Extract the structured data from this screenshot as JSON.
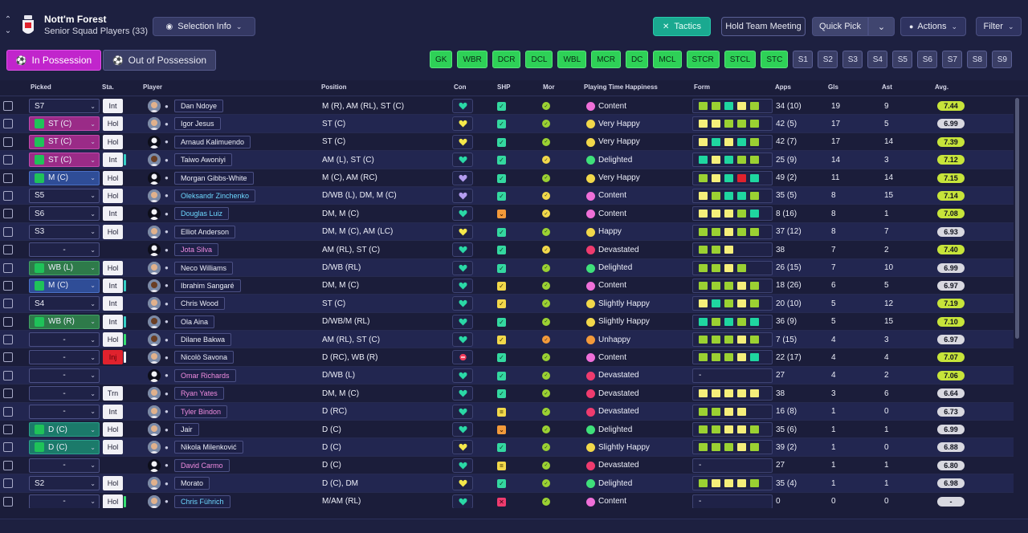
{
  "header": {
    "club_name": "Nott'm Forest",
    "squad_label": "Senior Squad Players (33)",
    "selection_info": "Selection Info",
    "tactics": "Tactics",
    "hold_meeting": "Hold Team Meeting",
    "quick_pick": "Quick Pick",
    "actions": "Actions",
    "filter": "Filter"
  },
  "tabs": {
    "in_possession": "In Possession",
    "out_possession": "Out of Possession"
  },
  "position_buttons": [
    {
      "label": "GK",
      "type": "g"
    },
    {
      "label": "WBR",
      "type": "g"
    },
    {
      "label": "DCR",
      "type": "g"
    },
    {
      "label": "DCL",
      "type": "g"
    },
    {
      "label": "WBL",
      "type": "g"
    },
    {
      "label": "MCR",
      "type": "g"
    },
    {
      "label": "DC",
      "type": "g"
    },
    {
      "label": "MCL",
      "type": "g"
    },
    {
      "label": "STCR",
      "type": "g"
    },
    {
      "label": "STCL",
      "type": "g"
    },
    {
      "label": "STC",
      "type": "g"
    },
    {
      "label": "S1",
      "type": "s"
    },
    {
      "label": "S2",
      "type": "s"
    },
    {
      "label": "S3",
      "type": "s"
    },
    {
      "label": "S4",
      "type": "s"
    },
    {
      "label": "S5",
      "type": "s"
    },
    {
      "label": "S6",
      "type": "s"
    },
    {
      "label": "S7",
      "type": "s"
    },
    {
      "label": "S8",
      "type": "s"
    },
    {
      "label": "S9",
      "type": "s"
    }
  ],
  "columns": {
    "picked": "Picked",
    "sta": "Sta.",
    "player": "Player",
    "position": "Position",
    "con": "Con",
    "shp": "SHP",
    "mor": "Mor",
    "happiness": "Playing Time Happiness",
    "form": "Form",
    "apps": "Apps",
    "gls": "Gls",
    "ast": "Ast",
    "avg": "Avg."
  },
  "colors": {
    "form_green": "#1fd6a0",
    "form_lightgreen": "#9bd132",
    "form_yellow": "#f5ef7a",
    "form_red": "#e0222d",
    "happy": "#f2d84a",
    "content": "#ef6fd8",
    "devastated": "#ef3b6e",
    "unhappy": "#f39a3a",
    "delighted": "#3fe07a"
  },
  "players": [
    {
      "picked": "S7",
      "pk": "sub",
      "sta": "Int",
      "bar": "",
      "avatar": "light",
      "name": "Dan Ndoye",
      "nc": "",
      "pos": "M (R), AM (RL), ST (C)",
      "con": "green",
      "shp": "g",
      "mor": "g",
      "hap": "Content",
      "hapc": "content",
      "form": [
        "lg",
        "lg",
        "gr",
        "y",
        "lg"
      ],
      "apps": "34 (10)",
      "gls": "19",
      "ast": "9",
      "avg": "7.44",
      "avgc": "#c7e43a"
    },
    {
      "picked": "ST (C)",
      "pk": "att",
      "sta": "Hol",
      "bar": "",
      "avatar": "light",
      "name": "Igor Jesus",
      "nc": "",
      "pos": "ST (C)",
      "con": "yellow",
      "shp": "g",
      "mor": "g",
      "hap": "Very Happy",
      "hapc": "happy",
      "form": [
        "y",
        "y",
        "lg",
        "lg",
        "lg"
      ],
      "apps": "42 (5)",
      "gls": "17",
      "ast": "5",
      "avg": "6.99",
      "avgc": "#d8d8e0"
    },
    {
      "picked": "ST (C)",
      "pk": "att",
      "sta": "Hol",
      "bar": "",
      "avatar": "none",
      "name": "Arnaud Kalimuendo",
      "nc": "",
      "pos": "ST (C)",
      "con": "yellow",
      "shp": "g",
      "mor": "g",
      "hap": "Very Happy",
      "hapc": "happy",
      "form": [
        "y",
        "gr",
        "y",
        "gr",
        "lg"
      ],
      "apps": "42 (7)",
      "gls": "17",
      "ast": "14",
      "avg": "7.39",
      "avgc": "#c7e43a"
    },
    {
      "picked": "ST (C)",
      "pk": "att",
      "sta": "Int",
      "bar": "c",
      "avatar": "dark",
      "name": "Taiwo Awoniyi",
      "nc": "",
      "pos": "AM (L), ST (C)",
      "con": "green",
      "shp": "g",
      "mor": "y",
      "hap": "Delighted",
      "hapc": "delighted",
      "form": [
        "gr",
        "y",
        "gr",
        "lg",
        "lg"
      ],
      "apps": "25 (9)",
      "gls": "14",
      "ast": "3",
      "avg": "7.12",
      "avgc": "#c7e43a"
    },
    {
      "picked": "M (C)",
      "pk": "mid",
      "sta": "Hol",
      "bar": "",
      "avatar": "none",
      "name": "Morgan Gibbs-White",
      "nc": "",
      "pos": "M (C), AM (RC)",
      "con": "purple",
      "shp": "g",
      "mor": "g",
      "hap": "Very Happy",
      "hapc": "happy",
      "form": [
        "lg",
        "y",
        "gr",
        "r",
        "gr"
      ],
      "apps": "49 (2)",
      "gls": "11",
      "ast": "14",
      "avg": "7.15",
      "avgc": "#c7e43a"
    },
    {
      "picked": "S5",
      "pk": "sub",
      "sta": "Hol",
      "bar": "",
      "avatar": "light",
      "name": "Oleksandr Zinchenko",
      "nc": "cyan",
      "pos": "D/WB (L), DM, M (C)",
      "con": "purple",
      "shp": "g",
      "mor": "y",
      "hap": "Content",
      "hapc": "content",
      "form": [
        "y",
        "lg",
        "gr",
        "gr",
        "lg"
      ],
      "apps": "35 (5)",
      "gls": "8",
      "ast": "15",
      "avg": "7.14",
      "avgc": "#c7e43a"
    },
    {
      "picked": "S6",
      "pk": "sub",
      "sta": "Int",
      "bar": "",
      "avatar": "none",
      "name": "Douglas Luiz",
      "nc": "cyan",
      "pos": "DM, M (C)",
      "con": "green",
      "shp": "o",
      "mor": "y",
      "hap": "Content",
      "hapc": "content",
      "form": [
        "y",
        "y",
        "y",
        "lg",
        "gr"
      ],
      "apps": "8 (16)",
      "gls": "8",
      "ast": "1",
      "avg": "7.08",
      "avgc": "#c7e43a"
    },
    {
      "picked": "S3",
      "pk": "sub",
      "sta": "Hol",
      "bar": "",
      "avatar": "light",
      "name": "Elliot Anderson",
      "nc": "",
      "pos": "DM, M (C), AM (LC)",
      "con": "yellow",
      "shp": "g",
      "mor": "g",
      "hap": "Happy",
      "hapc": "happy",
      "form": [
        "lg",
        "lg",
        "y",
        "lg",
        "lg"
      ],
      "apps": "37 (12)",
      "gls": "8",
      "ast": "7",
      "avg": "6.93",
      "avgc": "#d8d8e0"
    },
    {
      "picked": "-",
      "pk": "none",
      "sta": "",
      "bar": "",
      "avatar": "none",
      "name": "Jota Silva",
      "nc": "pink",
      "pos": "AM (RL), ST (C)",
      "con": "green",
      "shp": "g",
      "mor": "y",
      "hap": "Devastated",
      "hapc": "devastated",
      "form": [
        "lg",
        "lg",
        "y"
      ],
      "apps": "38",
      "gls": "7",
      "ast": "2",
      "avg": "7.40",
      "avgc": "#c7e43a"
    },
    {
      "picked": "WB (L)",
      "pk": "wb",
      "sta": "Hol",
      "bar": "",
      "avatar": "light",
      "name": "Neco Williams",
      "nc": "",
      "pos": "D/WB (RL)",
      "con": "green",
      "shp": "g",
      "mor": "g",
      "hap": "Delighted",
      "hapc": "delighted",
      "form": [
        "lg",
        "lg",
        "y",
        "lg"
      ],
      "apps": "26 (15)",
      "gls": "7",
      "ast": "10",
      "avg": "6.99",
      "avgc": "#d8d8e0"
    },
    {
      "picked": "M (C)",
      "pk": "mid",
      "sta": "Int",
      "bar": "c",
      "avatar": "dark",
      "name": "Ibrahim Sangaré",
      "nc": "",
      "pos": "DM, M (C)",
      "con": "green",
      "shp": "y",
      "mor": "g",
      "hap": "Content",
      "hapc": "content",
      "form": [
        "lg",
        "lg",
        "lg",
        "y",
        "lg"
      ],
      "apps": "18 (26)",
      "gls": "6",
      "ast": "5",
      "avg": "6.97",
      "avgc": "#d8d8e0"
    },
    {
      "picked": "S4",
      "pk": "sub",
      "sta": "Int",
      "bar": "",
      "avatar": "light",
      "name": "Chris Wood",
      "nc": "",
      "pos": "ST (C)",
      "con": "green",
      "shp": "y",
      "mor": "g",
      "hap": "Slightly Happy",
      "hapc": "happy",
      "form": [
        "y",
        "gr",
        "lg",
        "y",
        "lg"
      ],
      "apps": "20 (10)",
      "gls": "5",
      "ast": "12",
      "avg": "7.19",
      "avgc": "#c7e43a"
    },
    {
      "picked": "WB (R)",
      "pk": "wb",
      "sta": "Int",
      "bar": "c",
      "avatar": "dark",
      "name": "Ola Aina",
      "nc": "",
      "pos": "D/WB/M (RL)",
      "con": "green",
      "shp": "g",
      "mor": "g",
      "hap": "Slightly Happy",
      "hapc": "happy",
      "form": [
        "gr",
        "lg",
        "gr",
        "lg",
        "gr"
      ],
      "apps": "36 (9)",
      "gls": "5",
      "ast": "15",
      "avg": "7.10",
      "avgc": "#c7e43a"
    },
    {
      "picked": "-",
      "pk": "none",
      "sta": "Hol",
      "bar": "g",
      "avatar": "dark",
      "name": "Dilane Bakwa",
      "nc": "",
      "pos": "AM (RL), ST (C)",
      "con": "green",
      "shp": "y",
      "mor": "o",
      "hap": "Unhappy",
      "hapc": "unhappy",
      "form": [
        "lg",
        "lg",
        "lg",
        "y",
        "lg"
      ],
      "apps": "7 (15)",
      "gls": "4",
      "ast": "3",
      "avg": "6.97",
      "avgc": "#d8d8e0"
    },
    {
      "picked": "-",
      "pk": "none",
      "sta": "Inj",
      "bar": "w",
      "avatar": "light",
      "name": "Nicolò Savona",
      "nc": "",
      "pos": "D (RC), WB (R)",
      "con": "red",
      "shp": "g",
      "mor": "g",
      "hap": "Content",
      "hapc": "content",
      "form": [
        "lg",
        "lg",
        "lg",
        "y",
        "gr"
      ],
      "apps": "22 (17)",
      "gls": "4",
      "ast": "4",
      "avg": "7.07",
      "avgc": "#c7e43a"
    },
    {
      "picked": "-",
      "pk": "none",
      "sta": "",
      "bar": "",
      "avatar": "none",
      "name": "Omar Richards",
      "nc": "pink",
      "pos": "D/WB (L)",
      "con": "green",
      "shp": "g",
      "mor": "g",
      "hap": "Devastated",
      "hapc": "devastated",
      "form": [
        "-"
      ],
      "apps": "27",
      "gls": "4",
      "ast": "2",
      "avg": "7.06",
      "avgc": "#c7e43a"
    },
    {
      "picked": "-",
      "pk": "none",
      "sta": "Trn",
      "bar": "",
      "avatar": "light",
      "name": "Ryan Yates",
      "nc": "pink",
      "pos": "DM, M (C)",
      "con": "green",
      "shp": "g",
      "mor": "g",
      "hap": "Devastated",
      "hapc": "devastated",
      "form": [
        "y",
        "y",
        "y",
        "y",
        "y"
      ],
      "apps": "38",
      "gls": "3",
      "ast": "6",
      "avg": "6.64",
      "avgc": "#d8d8e0"
    },
    {
      "picked": "-",
      "pk": "none",
      "sta": "Int",
      "bar": "",
      "avatar": "light",
      "name": "Tyler Bindon",
      "nc": "pink",
      "pos": "D (RC)",
      "con": "green",
      "shp": "yy",
      "mor": "g",
      "hap": "Devastated",
      "hapc": "devastated",
      "form": [
        "lg",
        "lg",
        "y",
        "y"
      ],
      "apps": "16 (8)",
      "gls": "1",
      "ast": "0",
      "avg": "6.73",
      "avgc": "#d8d8e0"
    },
    {
      "picked": "D (C)",
      "pk": "def",
      "sta": "Hol",
      "bar": "",
      "avatar": "light",
      "name": "Jair",
      "nc": "",
      "pos": "D (C)",
      "con": "green",
      "shp": "o",
      "mor": "g",
      "hap": "Delighted",
      "hapc": "delighted",
      "form": [
        "lg",
        "lg",
        "y",
        "y",
        "lg"
      ],
      "apps": "35 (6)",
      "gls": "1",
      "ast": "1",
      "avg": "6.99",
      "avgc": "#d8d8e0"
    },
    {
      "picked": "D (C)",
      "pk": "def",
      "sta": "Hol",
      "bar": "",
      "avatar": "light",
      "name": "Nikola Milenković",
      "nc": "",
      "pos": "D (C)",
      "con": "yellow",
      "shp": "g",
      "mor": "g",
      "hap": "Slightly Happy",
      "hapc": "happy",
      "form": [
        "lg",
        "lg",
        "lg",
        "y",
        "lg"
      ],
      "apps": "39 (2)",
      "gls": "1",
      "ast": "0",
      "avg": "6.88",
      "avgc": "#d8d8e0"
    },
    {
      "picked": "-",
      "pk": "none",
      "sta": "",
      "bar": "",
      "avatar": "none",
      "name": "David Carmo",
      "nc": "pink",
      "pos": "D (C)",
      "con": "green",
      "shp": "yy",
      "mor": "g",
      "hap": "Devastated",
      "hapc": "devastated",
      "form": [
        "-"
      ],
      "apps": "27",
      "gls": "1",
      "ast": "1",
      "avg": "6.80",
      "avgc": "#d8d8e0"
    },
    {
      "picked": "S2",
      "pk": "sub",
      "sta": "Hol",
      "bar": "",
      "avatar": "light",
      "name": "Morato",
      "nc": "",
      "pos": "D (C), DM",
      "con": "yellow",
      "shp": "g",
      "mor": "g",
      "hap": "Delighted",
      "hapc": "delighted",
      "form": [
        "lg",
        "y",
        "y",
        "y",
        "lg"
      ],
      "apps": "35 (4)",
      "gls": "1",
      "ast": "1",
      "avg": "6.98",
      "avgc": "#d8d8e0"
    },
    {
      "picked": "-",
      "pk": "none",
      "sta": "Hol",
      "bar": "g",
      "avatar": "light",
      "name": "Chris Führich",
      "nc": "cyan",
      "pos": "M/AM (RL)",
      "con": "green",
      "shp": "x",
      "mor": "g",
      "hap": "Content",
      "hapc": "content",
      "form": [
        "-"
      ],
      "apps": "0",
      "gls": "0",
      "ast": "0",
      "avg": "-",
      "avgc": "#d8d8e0"
    }
  ]
}
